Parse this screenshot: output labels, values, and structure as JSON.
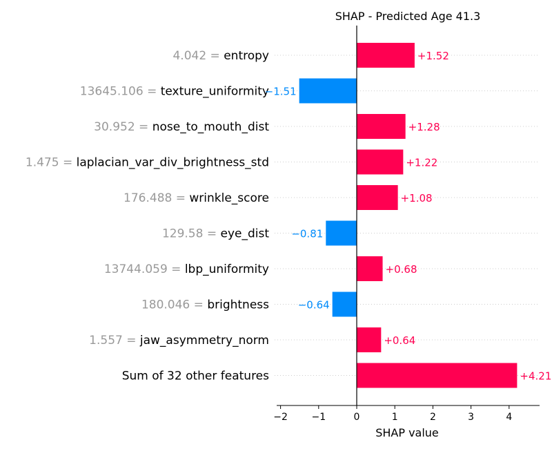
{
  "chart_data": {
    "type": "bar",
    "orientation": "horizontal",
    "title": "SHAP - Predicted Age 41.3",
    "xlabel": "SHAP value",
    "xlim": [
      -2.2,
      4.8
    ],
    "xticks": [
      -2,
      -1,
      0,
      1,
      2,
      3,
      4
    ],
    "xtick_labels": [
      "−2",
      "−1",
      "0",
      "1",
      "2",
      "3",
      "4"
    ],
    "rows": [
      {
        "value_text": "4.042",
        "feature": "entropy",
        "shap": 1.52,
        "label": "+1.52"
      },
      {
        "value_text": "13645.106",
        "feature": "texture_uniformity",
        "shap": -1.51,
        "label": "−1.51"
      },
      {
        "value_text": "30.952",
        "feature": "nose_to_mouth_dist",
        "shap": 1.28,
        "label": "+1.28"
      },
      {
        "value_text": "1.475",
        "feature": "laplacian_var_div_brightness_std",
        "shap": 1.22,
        "label": "+1.22"
      },
      {
        "value_text": "176.488",
        "feature": "wrinkle_score",
        "shap": 1.08,
        "label": "+1.08"
      },
      {
        "value_text": "129.58",
        "feature": "eye_dist",
        "shap": -0.81,
        "label": "−0.81"
      },
      {
        "value_text": "13744.059",
        "feature": "lbp_uniformity",
        "shap": 0.68,
        "label": "+0.68"
      },
      {
        "value_text": "180.046",
        "feature": "brightness",
        "shap": -0.64,
        "label": "−0.64"
      },
      {
        "value_text": "1.557",
        "feature": "jaw_asymmetry_norm",
        "shap": 0.64,
        "label": "+0.64"
      },
      {
        "value_text": "",
        "feature": "Sum of 32 other features",
        "shap": 4.21,
        "label": "+4.21"
      }
    ],
    "colors": {
      "positive": "#ff0051",
      "negative": "#008bfb",
      "value_text": "#999999"
    },
    "grid": "dotted row guides"
  }
}
